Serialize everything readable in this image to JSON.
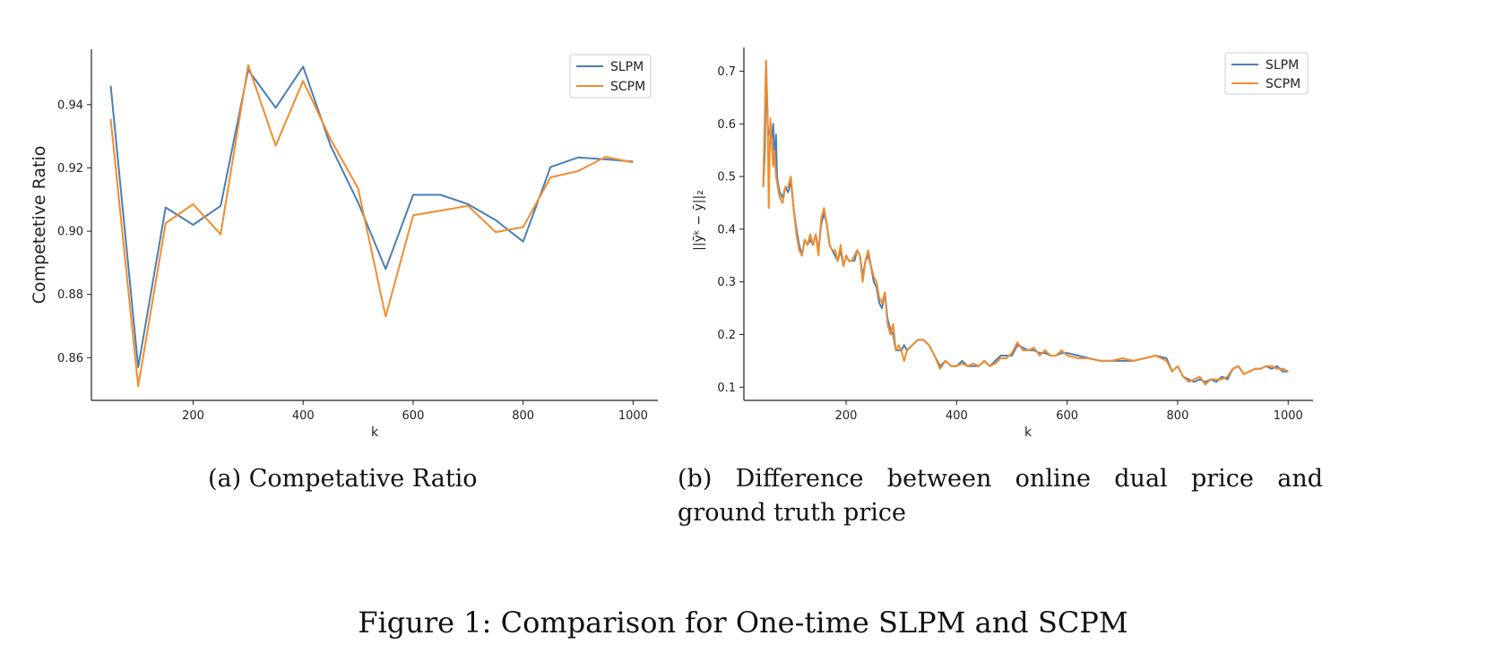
{
  "figure": {
    "caption": "Figure 1: Comparison for One-time SLPM and SCPM"
  },
  "panels": {
    "a": {
      "caption": "(a) Competative Ratio"
    },
    "b": {
      "caption": "(b) Difference between online dual price and ground truth price"
    }
  },
  "colors": {
    "slpm": "#4a7fb5",
    "scpm": "#f28c2e"
  },
  "chart_data": [
    {
      "type": "line",
      "title": "",
      "xlabel": "k",
      "ylabel": "Competetive Ratio",
      "xlim": [
        15,
        1045
      ],
      "ylim": [
        0.8465,
        0.9575
      ],
      "xticks": [
        200,
        400,
        600,
        800,
        1000
      ],
      "yticks": [
        0.86,
        0.88,
        0.9,
        0.92,
        0.94
      ],
      "ytick_labels": [
        "0.86",
        "0.88",
        "0.90",
        "0.92",
        "0.94"
      ],
      "grid": false,
      "legend": "top-right",
      "x": [
        50,
        100,
        150,
        200,
        250,
        300,
        350,
        400,
        450,
        500,
        550,
        600,
        650,
        700,
        750,
        800,
        850,
        900,
        950,
        1000
      ],
      "series": [
        {
          "name": "SLPM",
          "color_key": "slpm",
          "values": [
            0.946,
            0.857,
            0.9075,
            0.902,
            0.908,
            0.951,
            0.939,
            0.952,
            0.927,
            0.909,
            0.888,
            0.9115,
            0.9115,
            0.9085,
            0.9035,
            0.8967,
            0.9203,
            0.9233,
            0.9227,
            0.922
          ]
        },
        {
          "name": "SCPM",
          "color_key": "scpm",
          "values": [
            0.9355,
            0.851,
            0.9025,
            0.9085,
            0.899,
            0.9525,
            0.927,
            0.9475,
            0.929,
            0.9135,
            0.873,
            0.905,
            0.9065,
            0.908,
            0.8997,
            0.9013,
            0.917,
            0.919,
            0.9235,
            0.9217
          ]
        }
      ]
    },
    {
      "type": "line",
      "title": "",
      "xlabel": "k",
      "ylabel": "||ȳᵏ − ȳ||₂",
      "xlim": [
        15,
        1045
      ],
      "ylim": [
        0.075,
        0.745
      ],
      "xticks": [
        200,
        400,
        600,
        800,
        1000
      ],
      "yticks": [
        0.1,
        0.2,
        0.3,
        0.4,
        0.5,
        0.6,
        0.7
      ],
      "ytick_labels": [
        "0.1",
        "0.2",
        "0.3",
        "0.4",
        "0.5",
        "0.6",
        "0.7"
      ],
      "grid": false,
      "legend": "top-right",
      "x": [
        50,
        53,
        55,
        58,
        60,
        63,
        65,
        68,
        70,
        73,
        75,
        78,
        80,
        85,
        90,
        95,
        100,
        105,
        110,
        115,
        120,
        125,
        130,
        135,
        140,
        145,
        150,
        155,
        160,
        165,
        170,
        175,
        180,
        185,
        190,
        195,
        200,
        205,
        210,
        215,
        220,
        225,
        230,
        235,
        240,
        245,
        250,
        255,
        260,
        265,
        270,
        275,
        280,
        285,
        290,
        295,
        300,
        305,
        310,
        320,
        330,
        340,
        350,
        360,
        370,
        380,
        390,
        400,
        410,
        420,
        430,
        440,
        450,
        460,
        470,
        480,
        490,
        500,
        510,
        520,
        530,
        540,
        550,
        560,
        570,
        580,
        590,
        600,
        620,
        640,
        660,
        680,
        700,
        720,
        740,
        760,
        780,
        790,
        800,
        810,
        820,
        830,
        840,
        850,
        860,
        870,
        880,
        890,
        900,
        910,
        920,
        930,
        940,
        950,
        960,
        970,
        980,
        990,
        1000
      ],
      "series": [
        {
          "name": "SLPM",
          "color_key": "slpm",
          "values": [
            0.48,
            0.55,
            0.72,
            0.6,
            0.58,
            0.58,
            0.57,
            0.6,
            0.53,
            0.58,
            0.5,
            0.48,
            0.47,
            0.46,
            0.48,
            0.47,
            0.49,
            0.44,
            0.4,
            0.37,
            0.35,
            0.38,
            0.37,
            0.38,
            0.37,
            0.39,
            0.36,
            0.41,
            0.43,
            0.41,
            0.37,
            0.36,
            0.35,
            0.34,
            0.36,
            0.33,
            0.35,
            0.34,
            0.34,
            0.34,
            0.36,
            0.35,
            0.31,
            0.34,
            0.35,
            0.33,
            0.3,
            0.29,
            0.26,
            0.25,
            0.28,
            0.23,
            0.21,
            0.2,
            0.17,
            0.17,
            0.17,
            0.18,
            0.17,
            0.18,
            0.19,
            0.19,
            0.18,
            0.16,
            0.14,
            0.15,
            0.14,
            0.14,
            0.15,
            0.14,
            0.14,
            0.14,
            0.15,
            0.14,
            0.15,
            0.16,
            0.16,
            0.16,
            0.18,
            0.175,
            0.17,
            0.17,
            0.165,
            0.165,
            0.16,
            0.16,
            0.165,
            0.165,
            0.16,
            0.155,
            0.15,
            0.15,
            0.15,
            0.15,
            0.155,
            0.16,
            0.155,
            0.13,
            0.14,
            0.12,
            0.115,
            0.11,
            0.115,
            0.11,
            0.115,
            0.11,
            0.12,
            0.115,
            0.135,
            0.14,
            0.125,
            0.13,
            0.135,
            0.135,
            0.14,
            0.135,
            0.14,
            0.13,
            0.13
          ]
        },
        {
          "name": "SCPM",
          "color_key": "scpm",
          "values": [
            0.48,
            0.62,
            0.72,
            0.62,
            0.44,
            0.61,
            0.57,
            0.52,
            0.55,
            0.5,
            0.49,
            0.47,
            0.46,
            0.45,
            0.48,
            0.48,
            0.5,
            0.44,
            0.39,
            0.36,
            0.35,
            0.38,
            0.37,
            0.39,
            0.37,
            0.39,
            0.35,
            0.42,
            0.44,
            0.41,
            0.37,
            0.36,
            0.36,
            0.34,
            0.37,
            0.33,
            0.35,
            0.34,
            0.34,
            0.35,
            0.36,
            0.35,
            0.3,
            0.34,
            0.36,
            0.33,
            0.31,
            0.3,
            0.27,
            0.26,
            0.28,
            0.22,
            0.2,
            0.22,
            0.17,
            0.18,
            0.17,
            0.15,
            0.17,
            0.18,
            0.19,
            0.19,
            0.18,
            0.16,
            0.135,
            0.15,
            0.14,
            0.14,
            0.145,
            0.14,
            0.145,
            0.14,
            0.15,
            0.14,
            0.145,
            0.155,
            0.155,
            0.165,
            0.185,
            0.17,
            0.17,
            0.175,
            0.16,
            0.17,
            0.16,
            0.16,
            0.17,
            0.16,
            0.155,
            0.155,
            0.15,
            0.15,
            0.155,
            0.15,
            0.155,
            0.16,
            0.15,
            0.13,
            0.14,
            0.12,
            0.11,
            0.115,
            0.12,
            0.105,
            0.115,
            0.115,
            0.115,
            0.12,
            0.135,
            0.14,
            0.125,
            0.13,
            0.135,
            0.135,
            0.14,
            0.14,
            0.135,
            0.135,
            0.13
          ]
        }
      ]
    }
  ]
}
